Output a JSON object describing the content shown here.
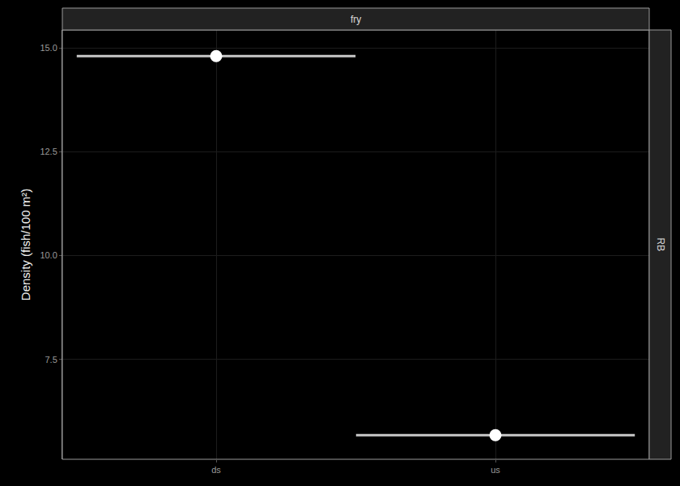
{
  "chart_data": {
    "type": "scatter",
    "y_label": "Density (fish/100 m²)",
    "strips": {
      "top": "fry",
      "right": "RB"
    },
    "categories": [
      "ds",
      "us"
    ],
    "values": [
      14.8,
      5.68
    ],
    "color": "#ffffff",
    "marker": "circle",
    "ylim": [
      5.1,
      15.43
    ],
    "yticks": [
      7.5,
      10.0,
      12.5,
      15.0
    ],
    "grid": true
  }
}
